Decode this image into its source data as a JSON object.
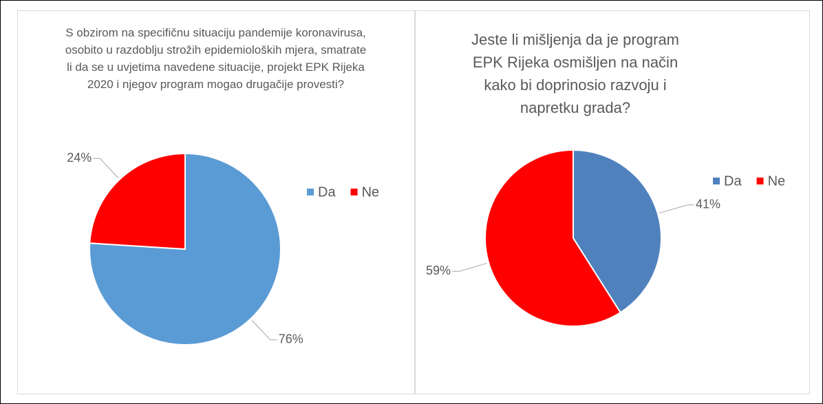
{
  "chart_data": [
    {
      "type": "pie",
      "title": "S obzirom na specifičnu situaciju pandemije koronavirusa, osobito u razdoblju strožih epidemioloških mjera, smatrate li da se u uvjetima navedene situacije, projekt EPK Rijeka 2020 i njegov program mogao drugačije provesti?",
      "categories": [
        "Da",
        "Ne"
      ],
      "values": [
        76,
        24
      ],
      "value_labels": [
        "76%",
        "24%"
      ],
      "colors": [
        "#5b9bd5",
        "#ff0000"
      ],
      "legend": "right"
    },
    {
      "type": "pie",
      "title": "Jeste li mišljenja da je program EPK Rijeka osmišljen na način kako bi doprinosio razvoju i napretku grada?",
      "categories": [
        "Da",
        "Ne"
      ],
      "values": [
        41,
        59
      ],
      "value_labels": [
        "41%",
        "59%"
      ],
      "colors": [
        "#4f81bd",
        "#ff0000"
      ],
      "legend": "right"
    }
  ]
}
